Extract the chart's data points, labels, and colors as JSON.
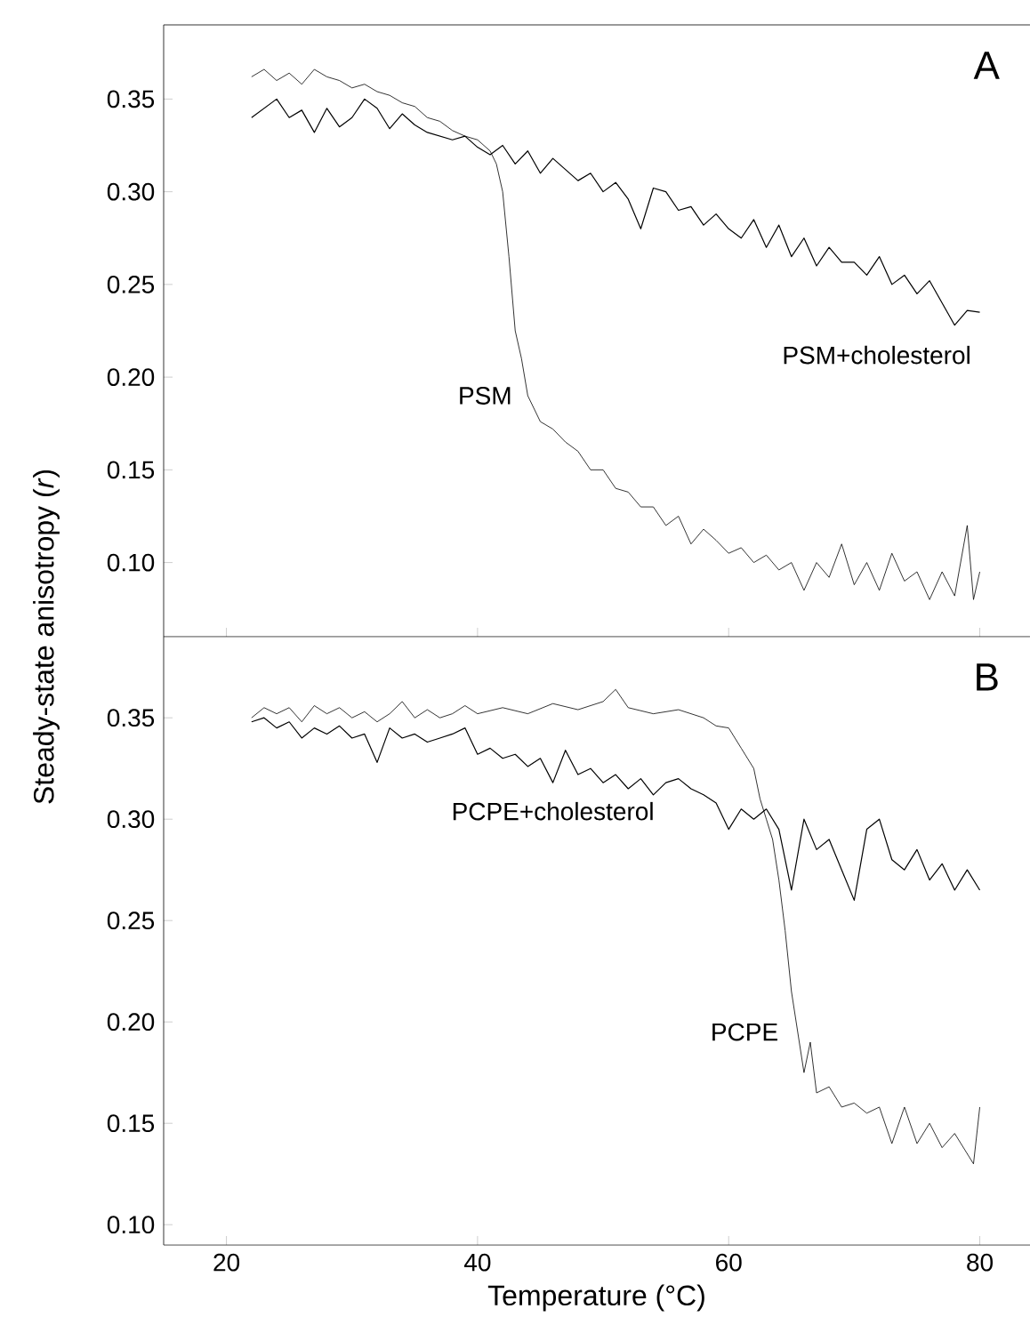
{
  "chart_data": [
    {
      "type": "line",
      "title": "A",
      "ylabel": "Steady-state anisotropy (*r*)",
      "xlim": [
        15,
        84
      ],
      "xticks": [
        {
          "value": 20,
          "label": null
        },
        {
          "value": 40,
          "label": null
        },
        {
          "value": 60,
          "label": null
        },
        {
          "value": 80,
          "label": null
        }
      ],
      "ylim": [
        0.06,
        0.39
      ],
      "yticks": [
        {
          "value": 0.1,
          "label": "0.10"
        },
        0.15,
        {
          "value": 0.2,
          "label": "0.20"
        },
        0.25,
        {
          "value": 0.3,
          "label": "0.30"
        },
        0.35
      ],
      "tick_labels": "y",
      "series": [
        {
          "name": "PSM",
          "color": "#000000",
          "x": [
            22,
            23,
            24,
            25,
            26,
            27,
            28,
            29,
            30,
            31,
            32,
            33,
            34,
            35,
            36,
            37,
            38,
            39,
            40,
            41,
            41.5,
            42,
            42.5,
            43,
            43.5,
            44,
            45,
            46,
            47,
            48,
            49,
            50,
            51,
            52,
            53,
            54,
            55,
            56,
            57,
            58,
            59,
            60,
            61,
            62,
            63,
            64,
            65,
            66,
            67,
            68,
            69,
            70,
            71,
            72,
            73,
            74,
            75,
            76,
            77,
            78,
            79,
            79.5,
            80
          ],
          "values": [
            0.362,
            0.366,
            0.36,
            0.364,
            0.358,
            0.366,
            0.362,
            0.36,
            0.356,
            0.358,
            0.354,
            0.352,
            0.348,
            0.346,
            0.34,
            0.338,
            0.333,
            0.33,
            0.328,
            0.322,
            0.315,
            0.3,
            0.265,
            0.225,
            0.21,
            0.19,
            0.176,
            0.172,
            0.165,
            0.16,
            0.15,
            0.15,
            0.14,
            0.138,
            0.13,
            0.13,
            0.12,
            0.125,
            0.11,
            0.118,
            0.112,
            0.105,
            0.108,
            0.1,
            0.104,
            0.096,
            0.1,
            0.085,
            0.1,
            0.092,
            0.11,
            0.088,
            0.1,
            0.085,
            0.105,
            0.09,
            0.095,
            0.08,
            0.095,
            0.082,
            0.12,
            0.08,
            0.095
          ]
        },
        {
          "name": "PSM+cholesterol",
          "color": "#000000",
          "x": [
            22,
            23,
            24,
            25,
            26,
            27,
            28,
            29,
            30,
            31,
            32,
            33,
            34,
            35,
            36,
            37,
            38,
            39,
            40,
            41,
            42,
            43,
            44,
            45,
            46,
            47,
            48,
            49,
            50,
            51,
            52,
            53,
            54,
            55,
            56,
            57,
            58,
            59,
            60,
            61,
            62,
            63,
            64,
            65,
            66,
            67,
            68,
            69,
            70,
            71,
            72,
            73,
            74,
            75,
            76,
            77,
            78,
            79,
            80
          ],
          "values": [
            0.34,
            0.345,
            0.35,
            0.34,
            0.344,
            0.332,
            0.345,
            0.335,
            0.34,
            0.35,
            0.345,
            0.334,
            0.342,
            0.336,
            0.332,
            0.33,
            0.328,
            0.33,
            0.324,
            0.32,
            0.325,
            0.315,
            0.322,
            0.31,
            0.318,
            0.312,
            0.306,
            0.31,
            0.3,
            0.305,
            0.296,
            0.28,
            0.302,
            0.3,
            0.29,
            0.292,
            0.282,
            0.288,
            0.28,
            0.275,
            0.285,
            0.27,
            0.282,
            0.265,
            0.275,
            0.26,
            0.27,
            0.262,
            0.262,
            0.255,
            0.265,
            0.25,
            0.255,
            0.245,
            0.252,
            0.24,
            0.228,
            0.236,
            0.235
          ]
        }
      ]
    },
    {
      "type": "line",
      "title": "B",
      "xlabel": "Temperature (°C)",
      "xlim": [
        15,
        84
      ],
      "xticks": [
        20,
        40,
        60,
        80
      ],
      "ylim": [
        0.09,
        0.39
      ],
      "yticks": [
        {
          "value": 0.1,
          "label": "0.10"
        },
        0.15,
        {
          "value": 0.2,
          "label": "0.20"
        },
        0.25,
        {
          "value": 0.3,
          "label": "0.30"
        },
        0.35
      ],
      "series": [
        {
          "name": "PCPE",
          "color": "#000000",
          "x": [
            22,
            23,
            24,
            25,
            26,
            27,
            28,
            29,
            30,
            31,
            32,
            33,
            34,
            35,
            36,
            37,
            38,
            39,
            40,
            42,
            44,
            46,
            48,
            50,
            51,
            52,
            54,
            56,
            58,
            59,
            60,
            61,
            62,
            62.5,
            63,
            63.5,
            64,
            64.5,
            65,
            65.5,
            66,
            66.5,
            67,
            68,
            69,
            70,
            71,
            72,
            73,
            74,
            75,
            76,
            77,
            78,
            79,
            79.5,
            80
          ],
          "values": [
            0.35,
            0.355,
            0.352,
            0.355,
            0.348,
            0.356,
            0.352,
            0.355,
            0.35,
            0.353,
            0.348,
            0.352,
            0.358,
            0.35,
            0.354,
            0.35,
            0.352,
            0.356,
            0.352,
            0.355,
            0.352,
            0.357,
            0.354,
            0.358,
            0.364,
            0.355,
            0.352,
            0.354,
            0.35,
            0.346,
            0.345,
            0.335,
            0.325,
            0.31,
            0.3,
            0.29,
            0.27,
            0.245,
            0.215,
            0.195,
            0.175,
            0.19,
            0.165,
            0.168,
            0.158,
            0.16,
            0.155,
            0.158,
            0.14,
            0.158,
            0.14,
            0.15,
            0.138,
            0.145,
            0.135,
            0.13,
            0.158
          ]
        },
        {
          "name": "PCPE+cholesterol",
          "color": "#000000",
          "x": [
            22,
            23,
            24,
            25,
            26,
            27,
            28,
            29,
            30,
            31,
            32,
            33,
            34,
            35,
            36,
            37,
            38,
            39,
            40,
            41,
            42,
            43,
            44,
            45,
            46,
            47,
            48,
            49,
            50,
            51,
            52,
            53,
            54,
            55,
            56,
            57,
            58,
            59,
            60,
            61,
            62,
            63,
            64,
            65,
            66,
            67,
            68,
            69,
            70,
            71,
            72,
            73,
            74,
            75,
            76,
            77,
            78,
            79,
            80
          ],
          "values": [
            0.348,
            0.35,
            0.345,
            0.348,
            0.34,
            0.345,
            0.342,
            0.346,
            0.34,
            0.342,
            0.328,
            0.345,
            0.34,
            0.342,
            0.338,
            0.34,
            0.342,
            0.345,
            0.332,
            0.335,
            0.33,
            0.332,
            0.326,
            0.33,
            0.318,
            0.334,
            0.322,
            0.325,
            0.318,
            0.322,
            0.315,
            0.32,
            0.312,
            0.318,
            0.32,
            0.315,
            0.312,
            0.308,
            0.295,
            0.305,
            0.3,
            0.305,
            0.295,
            0.265,
            0.3,
            0.285,
            0.29,
            0.275,
            0.26,
            0.295,
            0.3,
            0.28,
            0.275,
            0.285,
            0.27,
            0.278,
            0.265,
            0.275,
            0.265
          ]
        }
      ]
    }
  ]
}
